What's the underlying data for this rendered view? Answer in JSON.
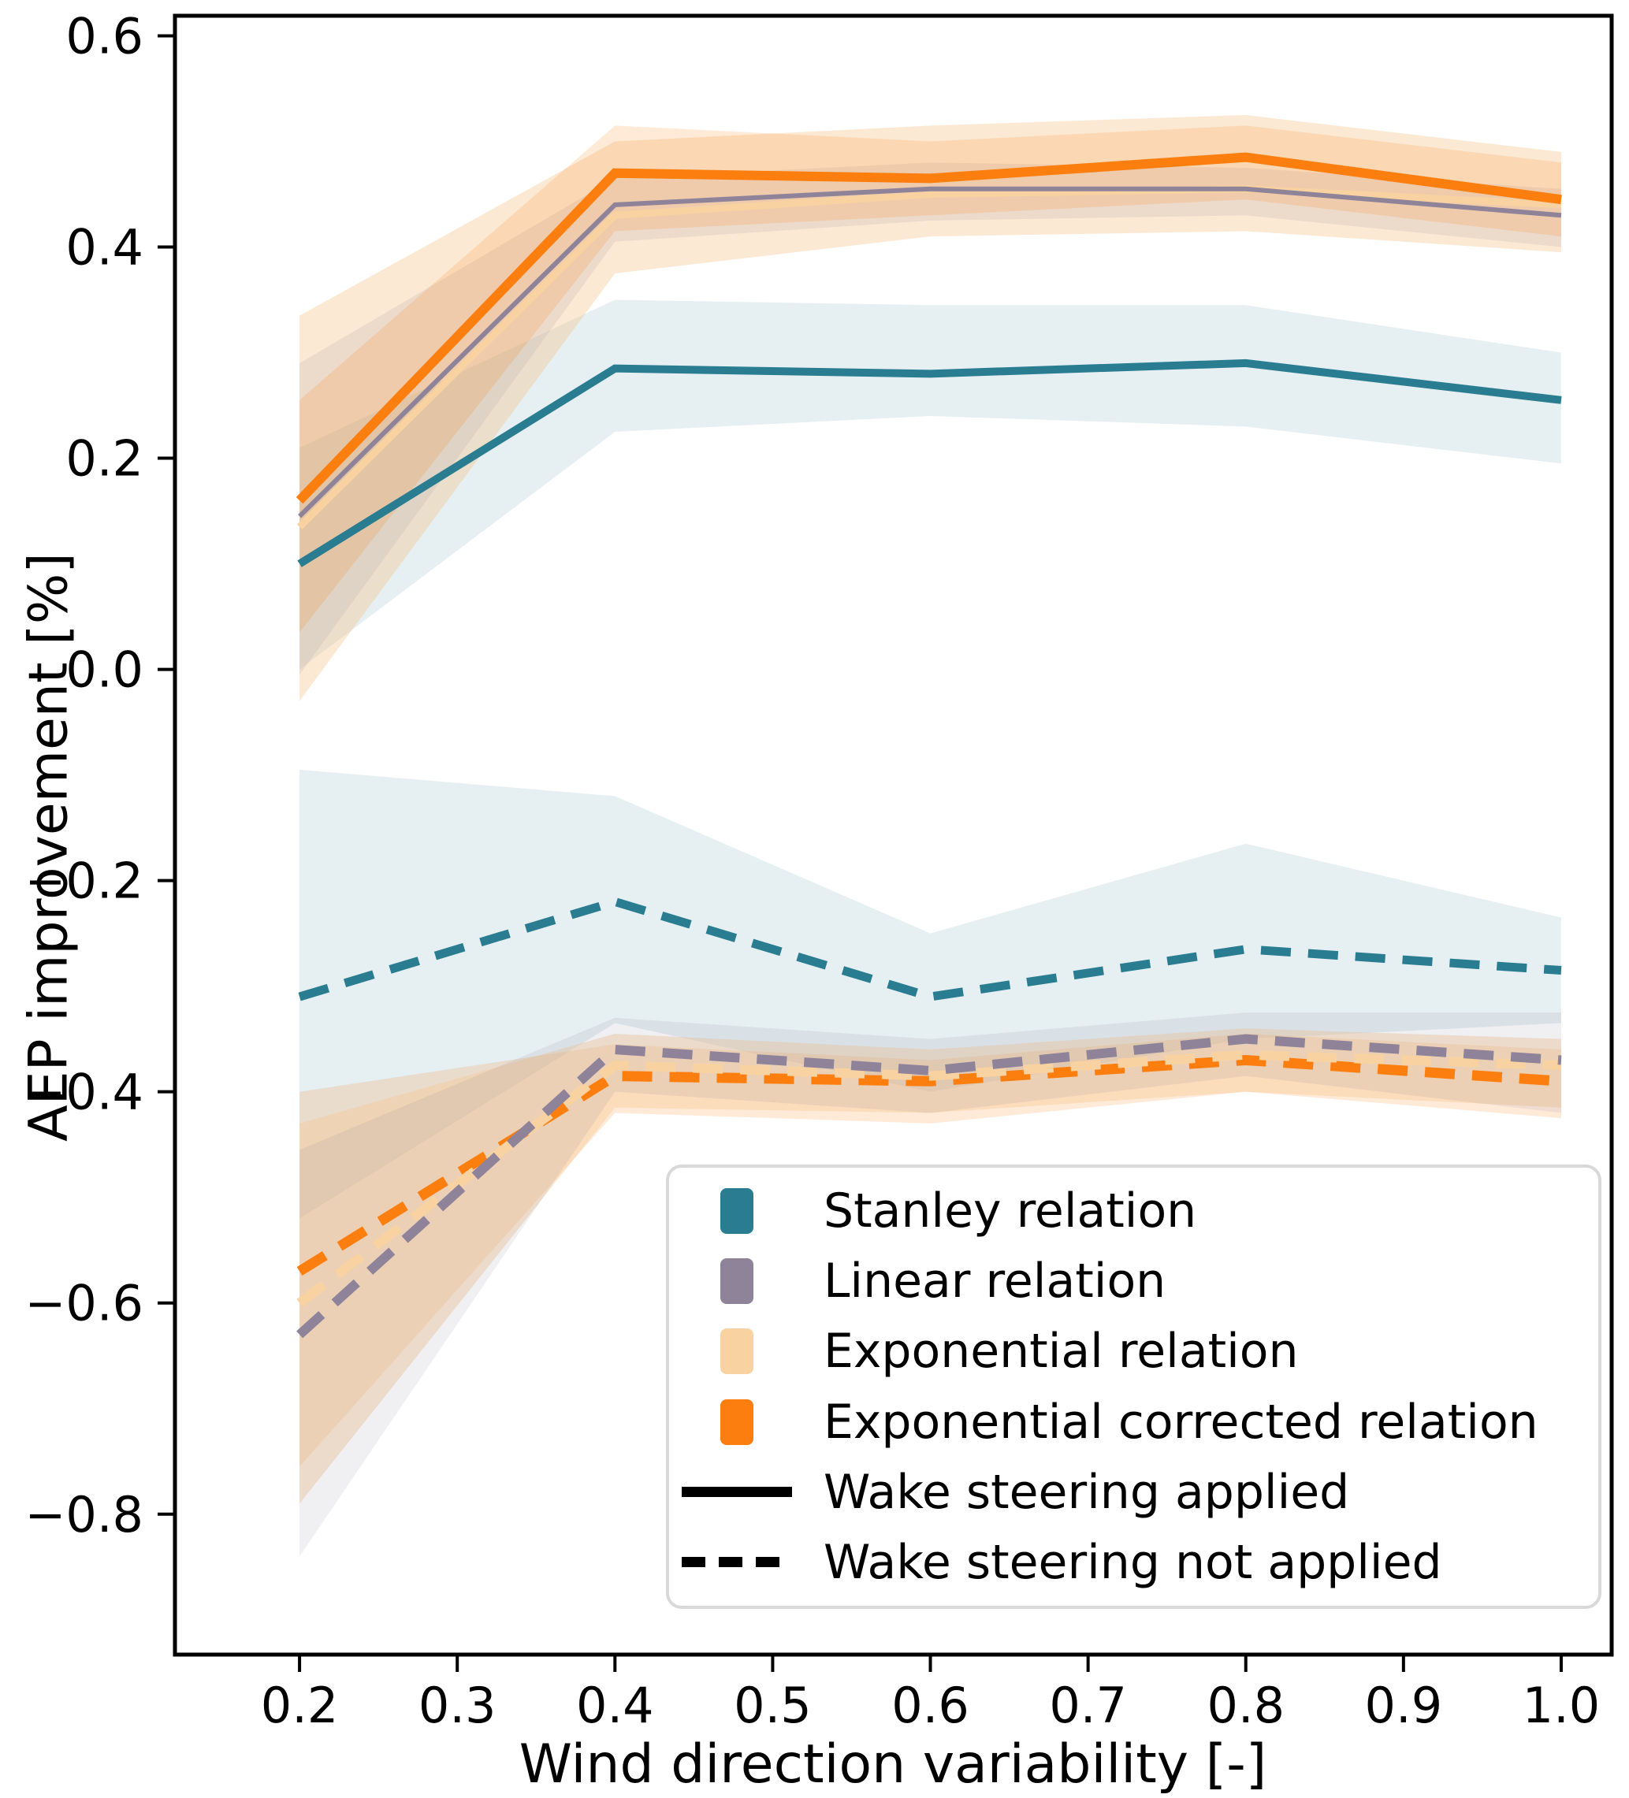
{
  "chart_data": {
    "type": "line",
    "title": "",
    "xlabel": "Wind direction variability [-]",
    "ylabel": "AEP improvement [%]",
    "x": [
      0.2,
      0.4,
      0.6,
      0.8,
      1.0
    ],
    "x_ticks": [
      0.2,
      0.3,
      0.4,
      0.5,
      0.6,
      0.7,
      0.8,
      0.9,
      1.0
    ],
    "x_tick_labels": [
      "0.2",
      "0.3",
      "0.4",
      "0.5",
      "0.6",
      "0.7",
      "0.8",
      "0.9",
      "1.0"
    ],
    "y_ticks": [
      0.6,
      0.4,
      0.2,
      0.0,
      -0.2,
      -0.4,
      -0.6,
      -0.8
    ],
    "y_tick_labels": [
      "0.6",
      "0.4",
      "0.2",
      "0.0",
      "−0.2",
      "−0.4",
      "−0.6",
      "−0.8"
    ],
    "xlim": [
      0.121,
      1.032
    ],
    "ylim": [
      -0.933,
      0.619
    ],
    "grid": false,
    "legend_position": "lower right",
    "colors": {
      "stanley": "#2a7d91",
      "linear": "#8e8398",
      "exponential": "#f8d2a0",
      "exponential_corrected": "#fc7e0f",
      "legend_border": "#d9d9d9",
      "spine": "#000000"
    },
    "series": [
      {
        "name": "Stanley relation (wake steering applied)",
        "relation": "Stanley relation",
        "steering": "applied",
        "color": "#2a7d91",
        "style": "solid",
        "width": 10,
        "band_color": "#4b8ea0",
        "band_opacity": 0.14,
        "values": [
          0.1,
          0.285,
          0.28,
          0.29,
          0.255
        ],
        "band_upper": [
          0.21,
          0.35,
          0.345,
          0.345,
          0.3
        ],
        "band_lower": [
          0.0,
          0.225,
          0.24,
          0.23,
          0.195
        ]
      },
      {
        "name": "Exponential relation (wake steering applied)",
        "relation": "Exponential relation",
        "steering": "applied",
        "color": "#f8d2a0",
        "style": "solid",
        "width": 9,
        "band_color": "#f5c58c",
        "band_opacity": 0.38,
        "values": [
          0.135,
          0.43,
          0.45,
          0.455,
          0.44
        ],
        "band_upper": [
          0.335,
          0.5,
          0.515,
          0.525,
          0.49
        ],
        "band_lower": [
          -0.03,
          0.375,
          0.41,
          0.415,
          0.395
        ]
      },
      {
        "name": "Linear relation (wake steering applied)",
        "relation": "Linear relation",
        "steering": "applied",
        "color": "#8e8398",
        "style": "solid",
        "width": 6,
        "band_color": "#8e8398",
        "band_opacity": 0.13,
        "values": [
          0.145,
          0.44,
          0.455,
          0.455,
          0.43
        ],
        "band_upper": [
          0.29,
          0.465,
          0.48,
          0.475,
          0.455
        ],
        "band_lower": [
          -0.005,
          0.405,
          0.425,
          0.43,
          0.4
        ]
      },
      {
        "name": "Exponential corrected relation (wake steering applied)",
        "relation": "Exponential corrected relation",
        "steering": "applied",
        "color": "#fc7e0f",
        "style": "solid",
        "width": 12,
        "band_color": "#fc7e0f",
        "band_opacity": 0.16,
        "values": [
          0.16,
          0.47,
          0.465,
          0.485,
          0.445
        ],
        "band_upper": [
          0.255,
          0.515,
          0.5,
          0.515,
          0.48
        ],
        "band_lower": [
          0.035,
          0.415,
          0.43,
          0.445,
          0.41
        ]
      },
      {
        "name": "Stanley relation (wake steering not applied)",
        "relation": "Stanley relation",
        "steering": "not applied",
        "color": "#2a7d91",
        "style": "dashed",
        "width": 11,
        "band_color": "#4b8ea0",
        "band_opacity": 0.14,
        "values": [
          -0.31,
          -0.22,
          -0.31,
          -0.265,
          -0.285
        ],
        "band_upper": [
          -0.095,
          -0.12,
          -0.25,
          -0.165,
          -0.235
        ],
        "band_lower": [
          -0.52,
          -0.335,
          -0.4,
          -0.35,
          -0.335
        ]
      },
      {
        "name": "Exponential corrected relation (wake steering not applied)",
        "relation": "Exponential corrected relation",
        "steering": "not applied",
        "color": "#fc7e0f",
        "style": "dashed",
        "width": 13,
        "band_color": "#fc7e0f",
        "band_opacity": 0.16,
        "values": [
          -0.57,
          -0.385,
          -0.39,
          -0.37,
          -0.39
        ],
        "band_upper": [
          -0.4,
          -0.355,
          -0.37,
          -0.345,
          -0.36
        ],
        "band_lower": [
          -0.755,
          -0.42,
          -0.43,
          -0.4,
          -0.425
        ]
      },
      {
        "name": "Exponential relation (wake steering not applied)",
        "relation": "Exponential relation",
        "steering": "not applied",
        "color": "#f8d2a0",
        "style": "dashed",
        "width": 12,
        "band_color": "#f5c58c",
        "band_opacity": 0.38,
        "values": [
          -0.6,
          -0.375,
          -0.385,
          -0.365,
          -0.375
        ],
        "band_upper": [
          -0.43,
          -0.345,
          -0.36,
          -0.34,
          -0.35
        ],
        "band_lower": [
          -0.79,
          -0.415,
          -0.42,
          -0.4,
          -0.415
        ]
      },
      {
        "name": "Linear relation (wake steering not applied)",
        "relation": "Linear relation",
        "steering": "not applied",
        "color": "#8e8398",
        "style": "dashed",
        "width": 12,
        "band_color": "#8e8398",
        "band_opacity": 0.13,
        "values": [
          -0.63,
          -0.36,
          -0.38,
          -0.35,
          -0.37
        ],
        "band_upper": [
          -0.455,
          -0.33,
          -0.35,
          -0.325,
          -0.325
        ],
        "band_lower": [
          -0.84,
          -0.4,
          -0.42,
          -0.385,
          -0.42
        ]
      }
    ],
    "legend": [
      {
        "label": "Stanley relation",
        "swatch": "#2a7d91",
        "type": "patch"
      },
      {
        "label": "Linear relation",
        "swatch": "#8e8398",
        "type": "patch"
      },
      {
        "label": "Exponential relation",
        "swatch": "#f8d2a0",
        "type": "patch"
      },
      {
        "label": "Exponential corrected relation",
        "swatch": "#fc7e0f",
        "type": "patch"
      },
      {
        "label": "Wake steering applied",
        "swatch": "#000000",
        "type": "solid-line"
      },
      {
        "label": "Wake steering not applied",
        "swatch": "#000000",
        "type": "dashed-line"
      }
    ]
  }
}
